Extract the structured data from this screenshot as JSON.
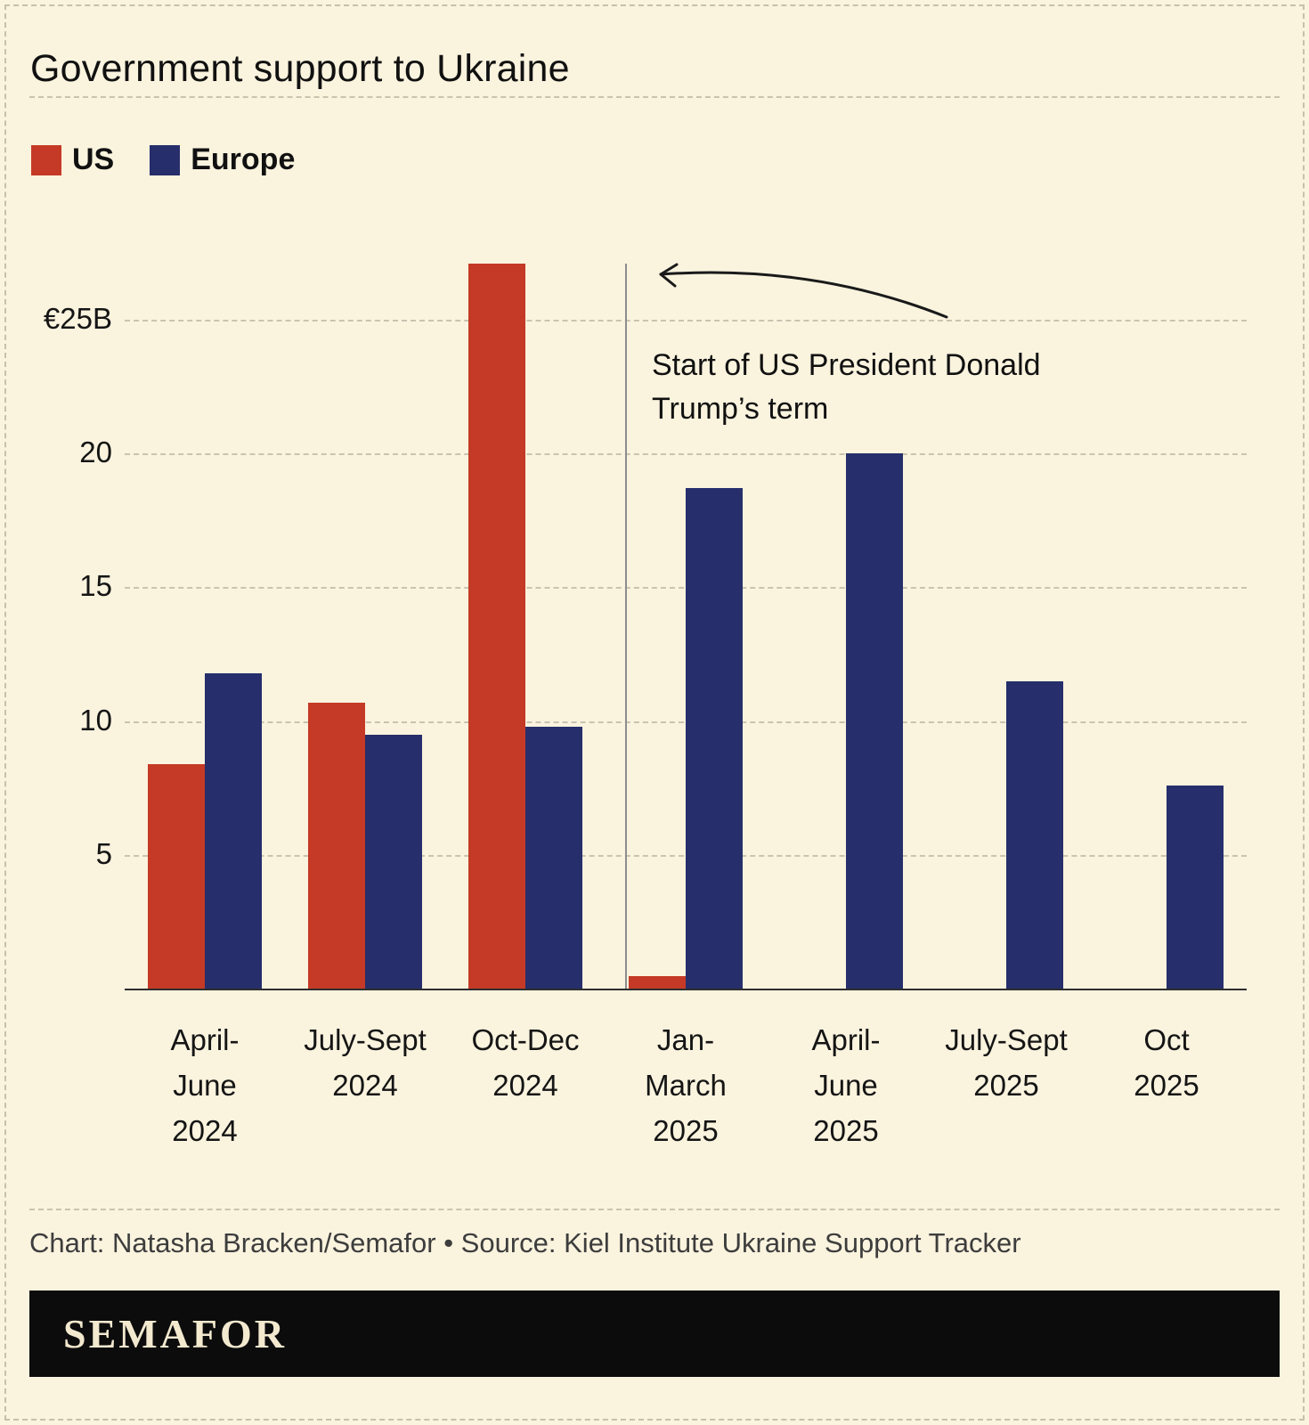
{
  "page": {
    "title": "Government support to Ukraine",
    "caption": "Chart: Natasha Bracken/Semafor • Source: Kiel Institute Ukraine Support Tracker",
    "brand": "SEMAFOR"
  },
  "colors": {
    "us": "#c43a26",
    "europe": "#262e6b",
    "background": "#faf3de",
    "grid": "#c9c3b0",
    "axis": "#2e2e2e",
    "annotation_line": "#8d8d8d"
  },
  "legend": [
    {
      "label": "US",
      "color_key": "us"
    },
    {
      "label": "Europe",
      "color_key": "europe"
    }
  ],
  "annotation": {
    "line1": "Start of US President Donald",
    "line2": "Trump’s term"
  },
  "chart_data": {
    "type": "bar",
    "title": "Government support to Ukraine",
    "unit": "€B",
    "categories": [
      [
        "April-",
        "June",
        "2024"
      ],
      [
        "July-Sept",
        "2024"
      ],
      [
        "Oct-Dec",
        "2024"
      ],
      [
        "Jan-",
        "March",
        "2025"
      ],
      [
        "April-",
        "June",
        "2025"
      ],
      [
        "July-Sept",
        "2025"
      ],
      [
        "Oct 2025"
      ]
    ],
    "series": [
      {
        "name": "US",
        "values": [
          8.4,
          10.7,
          27.1,
          0.45,
          0,
          0,
          0
        ]
      },
      {
        "name": "Europe",
        "values": [
          11.8,
          9.5,
          9.8,
          18.7,
          20,
          11.5,
          7.6
        ]
      }
    ],
    "y_ticks": [
      {
        "value": 5,
        "label": "5"
      },
      {
        "value": 10,
        "label": "10"
      },
      {
        "value": 15,
        "label": "15"
      },
      {
        "value": 20,
        "label": "20"
      },
      {
        "value": 25,
        "label": "€25B"
      }
    ],
    "ymax": 27.3,
    "grid": "dashed-horizontal",
    "legend_position": "top-left",
    "annotation": {
      "text": "Start of US President Donald Trump’s term",
      "after_category_index": 2
    }
  }
}
